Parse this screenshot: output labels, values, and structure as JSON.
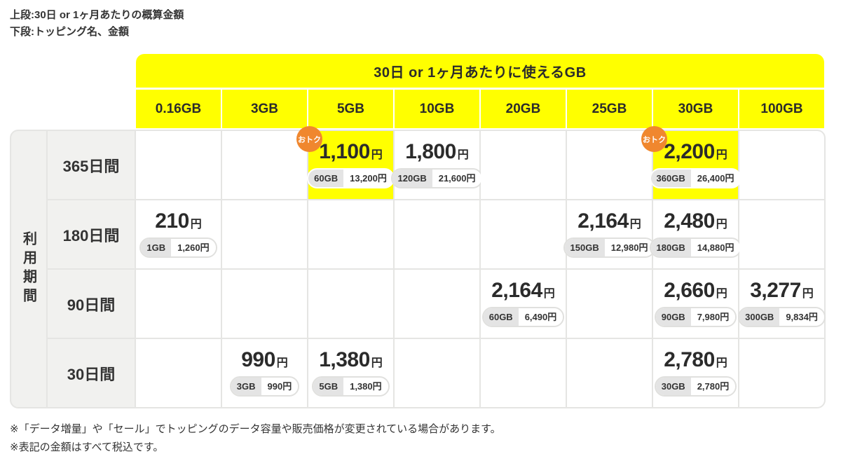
{
  "legend": {
    "line1": "上段:30日 or 1ヶ月あたりの概算金額",
    "line2": "下段:トッピング名、金額"
  },
  "notes": [
    "※「データ増量」や「セール」でトッピングのデータ容量や販売価格が変更されている場合があります。",
    "※表記の金額はすべて税込です。"
  ],
  "colors": {
    "accent_yellow": "#ffff00",
    "badge_orange": "#f0872e",
    "label_gray": "#f1f1ef",
    "grid_gray": "#e5e5e3",
    "pill_gray": "#e4e4e4",
    "text": "#333333"
  },
  "chart_data": {
    "type": "table",
    "title": "30日 or 1ヶ月あたりに使えるGB",
    "row_axis_label": "利用期間",
    "columns": [
      "0.16GB",
      "3GB",
      "5GB",
      "10GB",
      "20GB",
      "25GB",
      "30GB",
      "100GB"
    ],
    "rows": [
      {
        "label": "365日間",
        "cells": [
          null,
          null,
          {
            "price": "1,100",
            "unit": "円",
            "topping_gb": "60GB",
            "topping_price": "13,200円",
            "highlight": true,
            "badge": "おトク"
          },
          {
            "price": "1,800",
            "unit": "円",
            "topping_gb": "120GB",
            "topping_price": "21,600円"
          },
          null,
          null,
          {
            "price": "2,200",
            "unit": "円",
            "topping_gb": "360GB",
            "topping_price": "26,400円",
            "highlight": true,
            "badge": "おトク"
          },
          null
        ]
      },
      {
        "label": "180日間",
        "cells": [
          {
            "price": "210",
            "unit": "円",
            "topping_gb": "1GB",
            "topping_price": "1,260円"
          },
          null,
          null,
          null,
          null,
          {
            "price": "2,164",
            "unit": "円",
            "topping_gb": "150GB",
            "topping_price": "12,980円"
          },
          {
            "price": "2,480",
            "unit": "円",
            "topping_gb": "180GB",
            "topping_price": "14,880円"
          },
          null
        ]
      },
      {
        "label": "90日間",
        "cells": [
          null,
          null,
          null,
          null,
          {
            "price": "2,164",
            "unit": "円",
            "topping_gb": "60GB",
            "topping_price": "6,490円"
          },
          null,
          {
            "price": "2,660",
            "unit": "円",
            "topping_gb": "90GB",
            "topping_price": "7,980円"
          },
          {
            "price": "3,277",
            "unit": "円",
            "topping_gb": "300GB",
            "topping_price": "9,834円"
          }
        ]
      },
      {
        "label": "30日間",
        "cells": [
          null,
          {
            "price": "990",
            "unit": "円",
            "topping_gb": "3GB",
            "topping_price": "990円"
          },
          {
            "price": "1,380",
            "unit": "円",
            "topping_gb": "5GB",
            "topping_price": "1,380円"
          },
          null,
          null,
          null,
          {
            "price": "2,780",
            "unit": "円",
            "topping_gb": "30GB",
            "topping_price": "2,780円"
          },
          null
        ]
      }
    ]
  }
}
